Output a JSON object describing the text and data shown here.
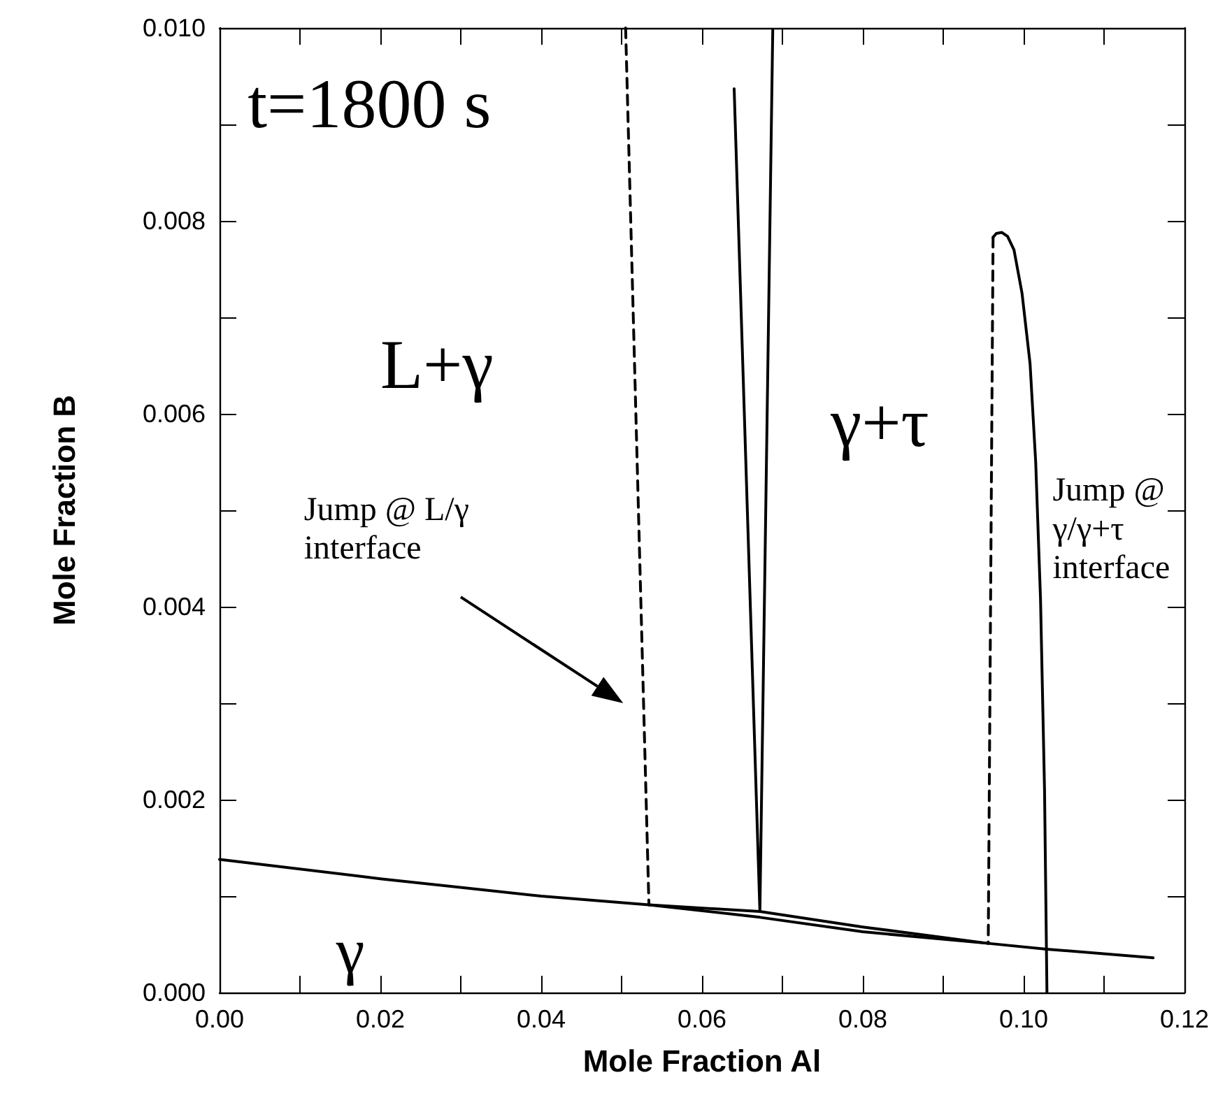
{
  "chart_data": {
    "type": "line",
    "xlabel": "Mole Fraction Al",
    "ylabel": "Mole Fraction B",
    "xlim": [
      0,
      0.12
    ],
    "ylim": [
      0,
      0.01
    ],
    "xticks": [
      {
        "value": 0,
        "label": "0.00"
      },
      {
        "value": 0.01,
        "label": null
      },
      {
        "value": 0.02,
        "label": "0.02"
      },
      {
        "value": 0.03,
        "label": null
      },
      {
        "value": 0.04,
        "label": "0.04"
      },
      {
        "value": 0.05,
        "label": null
      },
      {
        "value": 0.06,
        "label": "0.06"
      },
      {
        "value": 0.07,
        "label": null
      },
      {
        "value": 0.08,
        "label": "0.08"
      },
      {
        "value": 0.09,
        "label": null
      },
      {
        "value": 0.1,
        "label": "0.10"
      },
      {
        "value": 0.11,
        "label": null
      },
      {
        "value": 0.12,
        "label": "0.12"
      }
    ],
    "yticks": [
      {
        "value": 0,
        "label": "0.000"
      },
      {
        "value": 0.001,
        "label": null
      },
      {
        "value": 0.002,
        "label": "0.002"
      },
      {
        "value": 0.003,
        "label": null
      },
      {
        "value": 0.004,
        "label": "0.004"
      },
      {
        "value": 0.005,
        "label": null
      },
      {
        "value": 0.006,
        "label": "0.006"
      },
      {
        "value": 0.007,
        "label": null
      },
      {
        "value": 0.008,
        "label": "0.008"
      },
      {
        "value": 0.009,
        "label": null
      },
      {
        "value": 0.01,
        "label": "0.010"
      }
    ],
    "grid": false,
    "marker": "none",
    "series": [
      {
        "color": "#000000",
        "line_style": "solid",
        "x": [
          0,
          0.02,
          0.04,
          0.0534,
          0.0672,
          0.08,
          0.0956,
          0.1029,
          0.1161
        ],
        "values": [
          0.00138,
          0.00118,
          0.001,
          0.00091,
          0.00078,
          0.00063,
          0.00051,
          0.00045,
          0.00036
        ]
      },
      {
        "color": "#000000",
        "line_style": "solid",
        "x": [
          0.0534,
          0.0672,
          0.08,
          0.0956
        ],
        "values": [
          0.00091,
          0.00084,
          0.00068,
          0.00051
        ]
      },
      {
        "color": "#000000",
        "line_style": "solid",
        "x": [
          0.064,
          0.0672,
          0.0688
        ],
        "values": [
          0.00937,
          0.00084,
          0.00998
        ]
      },
      {
        "color": "#000000",
        "line_style": "dashed",
        "x": [
          0.0505,
          0.0534
        ],
        "values": [
          0.01,
          0.00091
        ]
      },
      {
        "color": "#000000",
        "line_style": "dashed",
        "x": [
          0.0962,
          0.0956
        ],
        "values": [
          0.00783,
          0.00051
        ]
      },
      {
        "color": "#000000",
        "line_style": "solid",
        "x": [
          0.0962,
          0.0966,
          0.0973,
          0.098,
          0.0988,
          0.0998,
          0.1008,
          0.1015,
          0.1021,
          0.1026,
          0.1029
        ],
        "values": [
          0.00783,
          0.00787,
          0.00788,
          0.00784,
          0.0077,
          0.00725,
          0.00652,
          0.0055,
          0.00408,
          0.0021,
          0
        ]
      }
    ],
    "annotations": [
      "t=1800 s",
      "L+γ",
      "γ+τ",
      "Jump @ L/γ\ninterface",
      "Jump @\nγ/γ+τ\ninterface",
      "γ"
    ]
  }
}
